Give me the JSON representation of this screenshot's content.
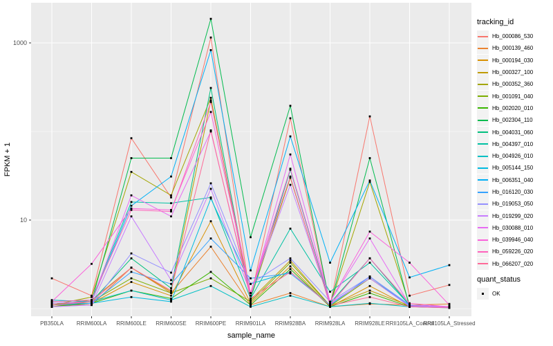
{
  "colors": {
    "panel_bg": "#EBEBEB",
    "grid": "#FFFFFF",
    "point": "#000000",
    "tick_label": "#4D4D4D",
    "axis_title": "#000000",
    "legend_key_bg": "#F2F2F2"
  },
  "chart_data": {
    "type": "line",
    "title": "",
    "xlabel": "sample_name",
    "ylabel": "FPKM + 1",
    "y_scale": "log10",
    "ylim": [
      1,
      2800
    ],
    "grid": "on",
    "legend_position": "right",
    "categories": [
      "PB350LA",
      "RRIM600LA",
      "RRIM600LE",
      "RRIM600SE",
      "RRIM600PE",
      "RRIM901LA",
      "RRIM928BA",
      "RRIM928LA",
      "RRIM928LE",
      "RRII105LA_Control",
      "RRII105LA_Stressed"
    ],
    "y_axis": {
      "breaks": [
        {
          "label": "1000",
          "value": 1000
        },
        {
          "label": "10",
          "value": 10
        }
      ],
      "minor_breaks": [
        100,
        1
      ]
    },
    "legend_tracking": {
      "title": "tracking_id"
    },
    "legend_quant": {
      "title": "quant_status",
      "items": [
        {
          "label": "OK"
        }
      ]
    },
    "series": [
      {
        "name": "Hb_000086_530",
        "color": "#F8766D",
        "values": [
          2.2,
          1.4,
          84,
          18,
          1150,
          1.3,
          141,
          1.1,
          148,
          1.4,
          1.85
        ]
      },
      {
        "name": "Hb_000139_460",
        "color": "#EA8331",
        "values": [
          1.1,
          1.1,
          2.9,
          1.5,
          5.0,
          1.1,
          1.5,
          1.05,
          1.13,
          1.1,
          1.13
        ]
      },
      {
        "name": "Hb_000194_030",
        "color": "#D89000",
        "values": [
          1.05,
          1.15,
          2.0,
          1.4,
          9.7,
          1.15,
          3.0,
          1.05,
          1.8,
          1.05,
          1.05
        ]
      },
      {
        "name": "Hb_000327_100",
        "color": "#C09B00",
        "values": [
          1.1,
          1.25,
          2.9,
          1.55,
          225,
          1.25,
          3.5,
          1.08,
          1.6,
          1.08,
          1.05
        ]
      },
      {
        "name": "Hb_000352_360",
        "color": "#A3A500",
        "values": [
          1.1,
          1.35,
          35,
          19,
          240,
          1.3,
          30,
          1.1,
          27,
          1.1,
          1.05
        ]
      },
      {
        "name": "Hb_001091_040",
        "color": "#7CAE00",
        "values": [
          1.05,
          1.2,
          2.2,
          1.5,
          2.2,
          1.2,
          3.3,
          1.07,
          2.2,
          1.07,
          1.04
        ]
      },
      {
        "name": "Hb_002020_010",
        "color": "#39B600",
        "values": [
          1.05,
          1.15,
          1.6,
          1.3,
          2.6,
          1.1,
          2.8,
          1.05,
          1.5,
          1.05,
          1.03
        ]
      },
      {
        "name": "Hb_002304_110",
        "color": "#00BB4E",
        "values": [
          1.1,
          1.2,
          50,
          50,
          1870,
          6.4,
          195,
          1.1,
          50,
          1.05,
          1.05
        ]
      },
      {
        "name": "Hb_004031_060",
        "color": "#00BF7D",
        "values": [
          1.1,
          1.2,
          3.7,
          1.7,
          310,
          1.3,
          37,
          1.15,
          3.7,
          1.1,
          1.05
        ]
      },
      {
        "name": "Hb_004397_010",
        "color": "#00C1A3",
        "values": [
          1.2,
          1.25,
          16,
          15.5,
          18,
          1.3,
          8.0,
          1.55,
          3.3,
          1.1,
          1.05
        ]
      },
      {
        "name": "Hb_004926_010",
        "color": "#00BFC4",
        "values": [
          1.25,
          1.2,
          1.6,
          1.25,
          1.8,
          1.05,
          1.4,
          1.05,
          1.15,
          1.05,
          1.02
        ]
      },
      {
        "name": "Hb_005144_150",
        "color": "#00BAE0",
        "values": [
          1.1,
          1.15,
          1.35,
          1.2,
          17.5,
          1.9,
          2.6,
          1.1,
          2.3,
          1.05,
          1.03
        ]
      },
      {
        "name": "Hb_006351_040",
        "color": "#00B0F6",
        "values": [
          1.15,
          1.2,
          14.5,
          31,
          830,
          2.7,
          88,
          3.3,
          28,
          2.25,
          3.1
        ]
      },
      {
        "name": "Hb_016120_030",
        "color": "#35A2FF",
        "values": [
          1.1,
          1.15,
          2.6,
          1.9,
          6.2,
          2.2,
          2.5,
          1.1,
          2.3,
          1.1,
          1.05
        ]
      },
      {
        "name": "Hb_019053_050",
        "color": "#9590FF",
        "values": [
          1.05,
          1.1,
          4.2,
          2.55,
          26,
          1.9,
          3.7,
          1.2,
          2.3,
          1.08,
          1.04
        ]
      },
      {
        "name": "Hb_019299_020",
        "color": "#C77CFF",
        "values": [
          1.05,
          1.1,
          11,
          2.1,
          22.5,
          1.5,
          25,
          1.15,
          2.2,
          1.06,
          1.04
        ]
      },
      {
        "name": "Hb_030088_010",
        "color": "#E76BF3",
        "values": [
          1.15,
          1.2,
          19,
          11,
          100,
          1.4,
          55,
          1.2,
          6.2,
          1.1,
          1.05
        ]
      },
      {
        "name": "Hb_039946_040",
        "color": "#FA62DB",
        "values": [
          1.2,
          3.2,
          13.5,
          13,
          166,
          1.5,
          38,
          1.2,
          7.4,
          3.3,
          1.1
        ]
      },
      {
        "name": "Hb_059226_020",
        "color": "#FF62BC",
        "values": [
          1.2,
          1.25,
          13,
          12.5,
          215,
          1.5,
          31,
          1.1,
          3.7,
          1.15,
          1.05
        ]
      },
      {
        "name": "Hb_066207_020",
        "color": "#FF6A98",
        "values": [
          1.1,
          1.2,
          2.9,
          1.6,
          103,
          1.3,
          2.6,
          1.08,
          1.35,
          1.05,
          1.02
        ]
      }
    ]
  }
}
